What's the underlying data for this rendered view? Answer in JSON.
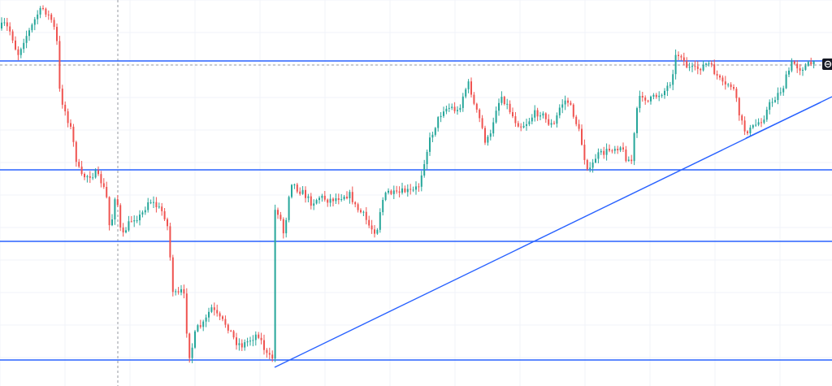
{
  "chart_data": {
    "type": "candlestick",
    "title": "",
    "xlabel": "",
    "ylabel": "",
    "ylim": [
      0,
      475
    ],
    "grid": true,
    "colors": {
      "up": "#26a69a",
      "down": "#ef5350",
      "level_line": "#2962ff",
      "trend_line": "#2962ff",
      "grid": "#f0f3fa",
      "crosshair": "#9598a1"
    },
    "path": [
      [
        0,
        35
      ],
      [
        8,
        30
      ],
      [
        16,
        40
      ],
      [
        24,
        68
      ],
      [
        32,
        48
      ],
      [
        40,
        36
      ],
      [
        48,
        18
      ],
      [
        56,
        10
      ],
      [
        66,
        25
      ],
      [
        72,
        45
      ],
      [
        76,
        115
      ],
      [
        82,
        135
      ],
      [
        90,
        160
      ],
      [
        96,
        195
      ],
      [
        102,
        218
      ],
      [
        110,
        216
      ],
      [
        120,
        214
      ],
      [
        128,
        225
      ],
      [
        134,
        245
      ],
      [
        138,
        288
      ],
      [
        145,
        232
      ],
      [
        152,
        295
      ],
      [
        158,
        280
      ],
      [
        166,
        268
      ],
      [
        176,
        266
      ],
      [
        186,
        245
      ],
      [
        196,
        255
      ],
      [
        204,
        262
      ],
      [
        210,
        285
      ],
      [
        214,
        355
      ],
      [
        220,
        365
      ],
      [
        228,
        355
      ],
      [
        232,
        405
      ],
      [
        236,
        440
      ],
      [
        244,
        405
      ],
      [
        254,
        398
      ],
      [
        262,
        378
      ],
      [
        272,
        392
      ],
      [
        282,
        400
      ],
      [
        292,
        420
      ],
      [
        300,
        425
      ],
      [
        310,
        418
      ],
      [
        320,
        410
      ],
      [
        326,
        425
      ],
      [
        332,
        440
      ],
      [
        338,
        440
      ],
      [
        340,
        258
      ],
      [
        346,
        262
      ],
      [
        352,
        290
      ],
      [
        360,
        222
      ],
      [
        368,
        232
      ],
      [
        376,
        238
      ],
      [
        386,
        250
      ],
      [
        396,
        242
      ],
      [
        406,
        246
      ],
      [
        416,
        244
      ],
      [
        426,
        240
      ],
      [
        434,
        240
      ],
      [
        440,
        255
      ],
      [
        450,
        265
      ],
      [
        458,
        280
      ],
      [
        466,
        285
      ],
      [
        472,
        248
      ],
      [
        480,
        236
      ],
      [
        490,
        240
      ],
      [
        500,
        235
      ],
      [
        510,
        236
      ],
      [
        518,
        228
      ],
      [
        524,
        200
      ],
      [
        532,
        170
      ],
      [
        540,
        150
      ],
      [
        548,
        134
      ],
      [
        558,
        132
      ],
      [
        566,
        138
      ],
      [
        574,
        112
      ],
      [
        580,
        102
      ],
      [
        586,
        130
      ],
      [
        594,
        150
      ],
      [
        600,
        175
      ],
      [
        606,
        168
      ],
      [
        612,
        135
      ],
      [
        620,
        118
      ],
      [
        628,
        132
      ],
      [
        636,
        148
      ],
      [
        644,
        155
      ],
      [
        652,
        150
      ],
      [
        660,
        140
      ],
      [
        668,
        138
      ],
      [
        676,
        150
      ],
      [
        684,
        155
      ],
      [
        692,
        130
      ],
      [
        700,
        122
      ],
      [
        708,
        140
      ],
      [
        716,
        165
      ],
      [
        722,
        195
      ],
      [
        728,
        212
      ],
      [
        736,
        192
      ],
      [
        746,
        188
      ],
      [
        756,
        182
      ],
      [
        766,
        180
      ],
      [
        774,
        196
      ],
      [
        780,
        198
      ],
      [
        786,
        135
      ],
      [
        792,
        115
      ],
      [
        800,
        125
      ],
      [
        810,
        118
      ],
      [
        820,
        112
      ],
      [
        828,
        100
      ],
      [
        834,
        70
      ],
      [
        840,
        65
      ],
      [
        846,
        80
      ],
      [
        852,
        85
      ],
      [
        858,
        86
      ],
      [
        866,
        82
      ],
      [
        874,
        78
      ],
      [
        880,
        86
      ],
      [
        888,
        98
      ],
      [
        894,
        108
      ],
      [
        900,
        102
      ],
      [
        906,
        112
      ],
      [
        912,
        140
      ],
      [
        918,
        160
      ],
      [
        926,
        160
      ],
      [
        934,
        152
      ],
      [
        942,
        145
      ],
      [
        950,
        128
      ],
      [
        958,
        118
      ],
      [
        966,
        108
      ],
      [
        972,
        90
      ],
      [
        978,
        76
      ],
      [
        986,
        84
      ],
      [
        994,
        82
      ],
      [
        1000,
        78
      ],
      [
        1004,
        80
      ]
    ],
    "horizontal_levels": [
      75,
      209,
      297,
      443
    ],
    "current_price_line": 80,
    "trend_lines": [
      [
        [
          338,
          452
        ],
        [
          1024,
          119
        ]
      ],
      [
        [
          918,
          170
        ],
        [
          1010,
          126
        ]
      ]
    ],
    "crosshair_x": 145
  },
  "price_badge": {
    "icon": "reset-icon",
    "color": "#131722"
  }
}
